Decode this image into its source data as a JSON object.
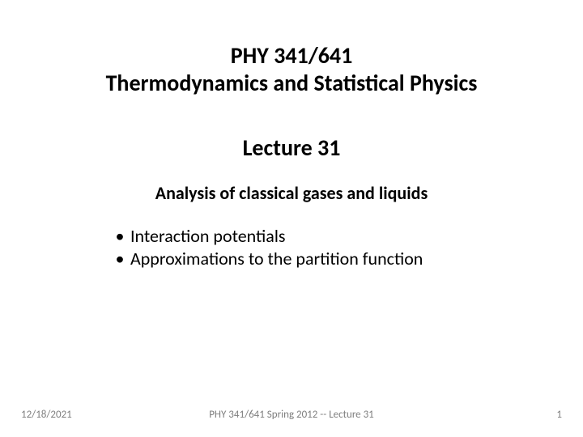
{
  "course_code": "PHY 341/641",
  "course_name": "Thermodynamics and Statistical Physics",
  "lecture_number": "Lecture 31",
  "subtitle": "Analysis of classical gases and liquids",
  "bullets": [
    "Interaction potentials",
    "Approximations to the partition function"
  ],
  "footer": {
    "date": "12/18/2021",
    "center": "PHY 341/641 Spring 2012 -- Lecture 31",
    "page": "1"
  },
  "colors": {
    "text": "#000000",
    "footer_text": "#7f7f7f",
    "background": "#ffffff"
  },
  "fontsize": {
    "title": 28,
    "subtitle": 22,
    "bullet": 22,
    "footer": 13
  }
}
